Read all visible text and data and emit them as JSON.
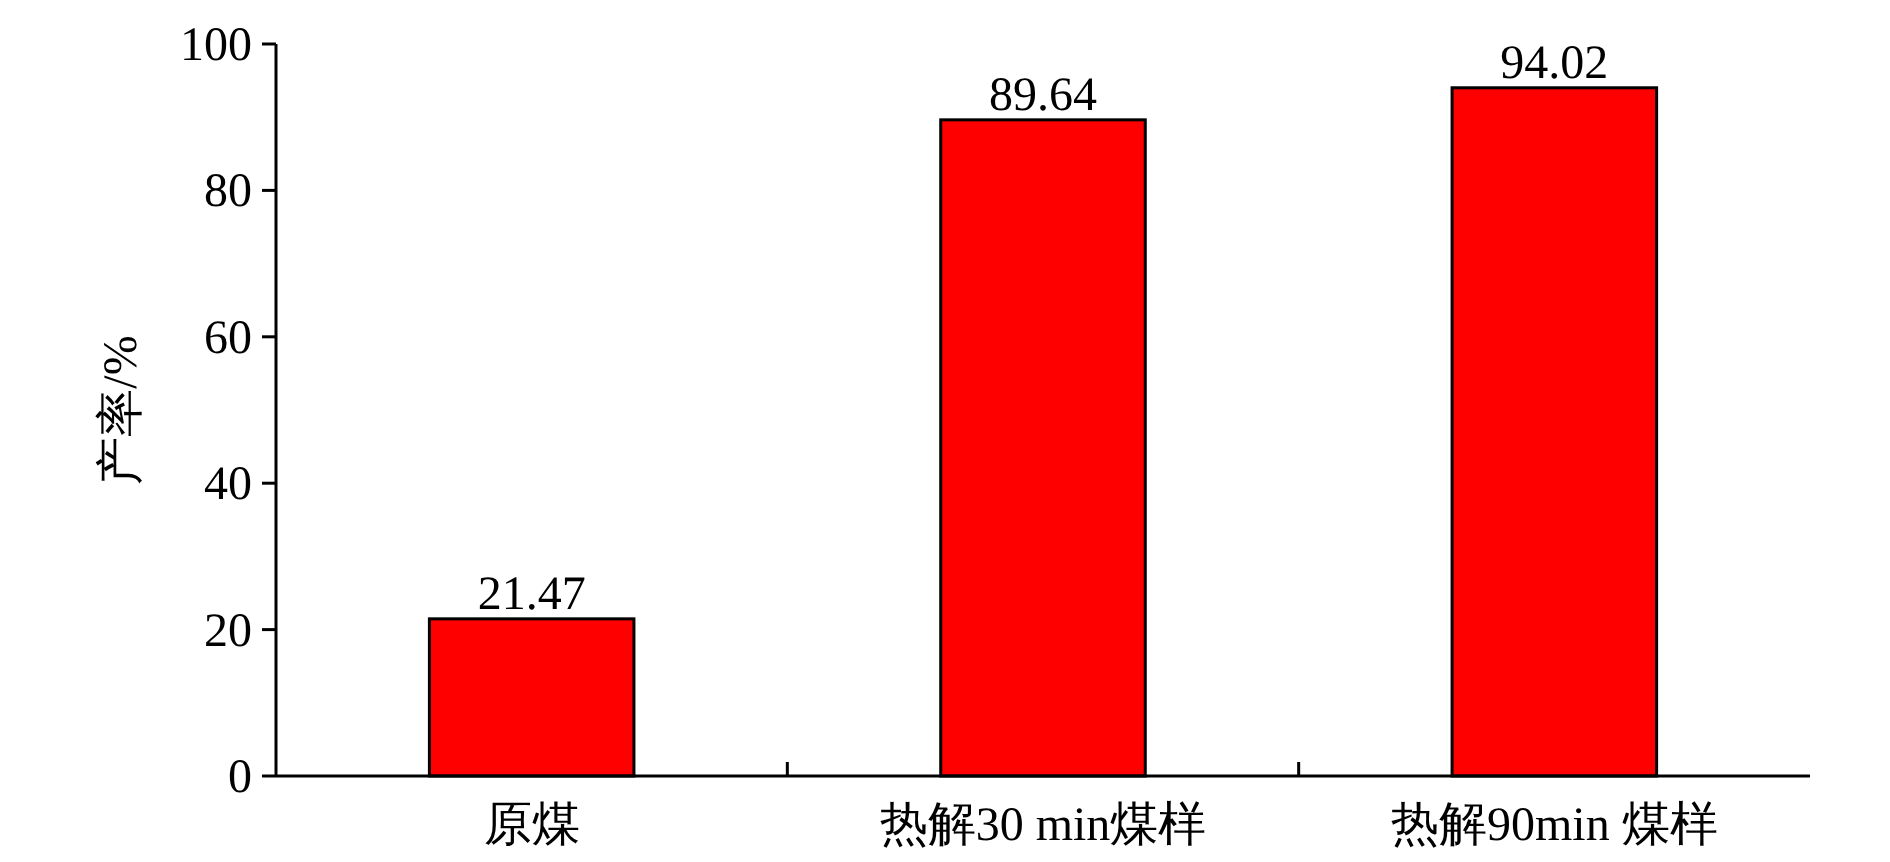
{
  "chart_data": {
    "type": "bar",
    "ylabel": "产率/%",
    "categories": [
      "原煤",
      "热解30 min煤样",
      "热解90min 煤样"
    ],
    "values": [
      21.47,
      89.64,
      94.02
    ],
    "color": "#ff0000",
    "ylim": [
      0,
      100
    ],
    "yticks": [
      0,
      20,
      40,
      60,
      80,
      100
    ],
    "data_labels": true
  }
}
